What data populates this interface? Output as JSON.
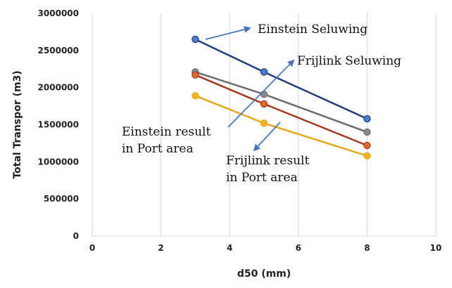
{
  "chart_data": {
    "type": "line",
    "xlabel": "d50 (mm)",
    "ylabel": "Total Transpor (m3)",
    "xlim": [
      0,
      10
    ],
    "ylim": [
      0,
      3000000
    ],
    "xticks": [
      0,
      2,
      4,
      6,
      8,
      10
    ],
    "yticks": [
      0,
      500000,
      1000000,
      1500000,
      2000000,
      2500000,
      3000000
    ],
    "grid": "vertical",
    "legend": "none",
    "series": [
      {
        "key": "einstein-seluwing",
        "color": "#1f3e7a",
        "marker_color": "#4a7fcf",
        "points": [
          [
            3,
            2650000
          ],
          [
            5,
            2210000
          ],
          [
            8,
            1580000
          ]
        ]
      },
      {
        "key": "frijlink-seluwing",
        "color": "#6d6d6d",
        "marker_color": "#8a8a8a",
        "points": [
          [
            3,
            2210000
          ],
          [
            5,
            1910000
          ],
          [
            8,
            1400000
          ]
        ]
      },
      {
        "key": "einstein-port",
        "color": "#a8361c",
        "marker_color": "#e06a2a",
        "points": [
          [
            3,
            2170000
          ],
          [
            5,
            1780000
          ],
          [
            8,
            1220000
          ]
        ]
      },
      {
        "key": "frijlink-port",
        "color": "#e6a817",
        "marker_color": "#f2b51d",
        "points": [
          [
            3,
            1890000
          ],
          [
            5,
            1520000
          ],
          [
            8,
            1080000
          ]
        ]
      }
    ],
    "annotations": [
      {
        "key": "einstein-seluwing",
        "lines": [
          "Einstein Seluwing"
        ]
      },
      {
        "key": "frijlink-seluwing",
        "lines": [
          "Frijlink Seluwing"
        ]
      },
      {
        "key": "einstein-port",
        "lines": [
          "Einstein result",
          "in Port area"
        ]
      },
      {
        "key": "frijlink-port",
        "lines": [
          "Frijlink result",
          "in Port area"
        ]
      }
    ],
    "arrow_color": "#4a76c0"
  }
}
